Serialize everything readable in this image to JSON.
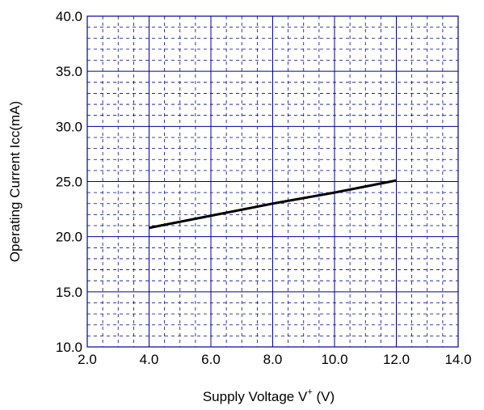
{
  "chart_data": {
    "type": "line",
    "title": "",
    "xlabel_main": "Supply Voltage  V",
    "xlabel_sup": "+",
    "xlabel_unit": " (V)",
    "ylabel": "Operating Current  Icc(mA)",
    "xlim": [
      2.0,
      14.0
    ],
    "ylim": [
      10.0,
      40.0
    ],
    "x_ticks": [
      2.0,
      4.0,
      6.0,
      8.0,
      10.0,
      12.0,
      14.0
    ],
    "x_tick_labels": [
      "2.0",
      "4.0",
      "6.0",
      "8.0",
      "10.0",
      "12.0",
      "14.0"
    ],
    "y_ticks": [
      10.0,
      15.0,
      20.0,
      25.0,
      30.0,
      35.0,
      40.0
    ],
    "y_tick_labels": [
      "10.0",
      "15.0",
      "20.0",
      "25.0",
      "30.0",
      "35.0",
      "40.0"
    ],
    "x_minor_step": 0.5,
    "y_minor_step": 1.0,
    "grid": true,
    "grid_color": "#0000a0",
    "series": [
      {
        "x": [
          4.0,
          6.0,
          8.0,
          10.0,
          12.0
        ],
        "values": [
          20.8,
          21.9,
          23.0,
          24.0,
          25.1
        ],
        "color": "#000000"
      }
    ]
  }
}
